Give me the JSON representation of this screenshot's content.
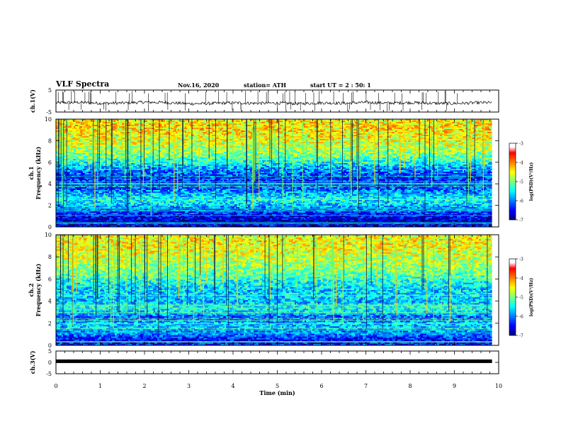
{
  "header": {
    "title": "VLF Spectra",
    "date": "Nov.16, 2020",
    "station": "station= ATH",
    "start": "start UT = 2 : 50: 1"
  },
  "chart_data": [
    {
      "type": "line",
      "panel": "ch1-waveform",
      "ylabel": "ch.1(V)",
      "ylim": [
        -5,
        5
      ],
      "yticks": [
        "5",
        "-5"
      ],
      "xlim": [
        0,
        10
      ],
      "series": [
        {
          "color": "#000000",
          "x": [
            0,
            0.5,
            1,
            1.5,
            2,
            2.5,
            3,
            3.5,
            4,
            4.5,
            5,
            5.5,
            6,
            6.5,
            7,
            7.5,
            8,
            8.5,
            9,
            9.5,
            9.85
          ],
          "y": [
            -0.8,
            -0.6,
            -1.0,
            -0.9,
            -0.5,
            -0.7,
            -1.2,
            -1.1,
            -0.8,
            -1.0,
            -0.9,
            -1.2,
            -0.8,
            -1.0,
            -0.6,
            -0.9,
            -0.7,
            -1.0,
            -1.1,
            -0.8,
            -0.7
          ]
        }
      ],
      "data_end_min": 9.85
    },
    {
      "type": "heatmap",
      "panel": "ch1-spectrogram",
      "ylabel_line1": "ch.1",
      "ylabel_line2": "Frequency (kHz)",
      "ylim": [
        0,
        10
      ],
      "yticks": [
        "0",
        "2",
        "4",
        "6",
        "8",
        "10"
      ],
      "xlim": [
        0,
        10
      ],
      "data_end_min": 9.85,
      "band_profile_kHz": [
        0,
        0.5,
        1,
        1.5,
        2,
        2.5,
        3,
        3.5,
        4,
        4.5,
        5,
        5.5,
        6,
        6.5,
        7,
        7.5,
        8,
        8.5,
        9,
        9.5,
        10
      ],
      "log_psd_profile": [
        -6.5,
        -6.8,
        -6.5,
        -6.2,
        -5.7,
        -5.5,
        -5.7,
        -6.1,
        -6.3,
        -6.3,
        -6.1,
        -5.8,
        -5.4,
        -5.1,
        -4.9,
        -4.7,
        -4.6,
        -4.5,
        -4.4,
        -4.4,
        -4.5
      ],
      "colorbar": {
        "label": "log(PSD)(V²/Hz)",
        "range": [
          -7,
          -3
        ],
        "ticks": [
          "-3",
          "-4",
          "-5",
          "-6",
          "-7"
        ]
      }
    },
    {
      "type": "heatmap",
      "panel": "ch2-spectrogram",
      "ylabel_line1": "ch.2",
      "ylabel_line2": "Frequency (kHz)",
      "ylim": [
        0,
        10
      ],
      "yticks": [
        "0",
        "2",
        "4",
        "6",
        "8",
        "10"
      ],
      "xlim": [
        0,
        10
      ],
      "data_end_min": 9.85,
      "band_profile_kHz": [
        0,
        0.5,
        1,
        1.5,
        2,
        2.5,
        3,
        3.5,
        4,
        4.5,
        5,
        5.5,
        6,
        6.5,
        7,
        7.5,
        8,
        8.5,
        9,
        9.5,
        10
      ],
      "log_psd_profile": [
        -6.3,
        -6.5,
        -6.0,
        -5.8,
        -5.7,
        -6.2,
        -5.6,
        -5.5,
        -5.8,
        -5.6,
        -5.7,
        -5.5,
        -5.3,
        -5.1,
        -4.9,
        -4.8,
        -4.7,
        -4.6,
        -4.5,
        -4.5,
        -4.6
      ],
      "colorbar": {
        "label": "log(PSD)(V²/Hz)",
        "range": [
          -7,
          -3
        ],
        "ticks": [
          "-3",
          "-4",
          "-5",
          "-6",
          "-7"
        ]
      }
    },
    {
      "type": "line",
      "panel": "ch3-waveform",
      "ylabel": "ch.3(V)",
      "ylim": [
        -5,
        5
      ],
      "yticks": [
        "5",
        "0",
        "-5"
      ],
      "xlim": [
        0,
        10
      ],
      "xlabel": "Time (min)",
      "xticks": [
        "0",
        "1",
        "2",
        "3",
        "4",
        "5",
        "6",
        "7",
        "8",
        "9",
        "10"
      ],
      "series": [
        {
          "color": "#000000",
          "x": [
            0,
            9.85
          ],
          "y": [
            0.5,
            0.5
          ]
        }
      ],
      "data_end_min": 9.85
    }
  ]
}
